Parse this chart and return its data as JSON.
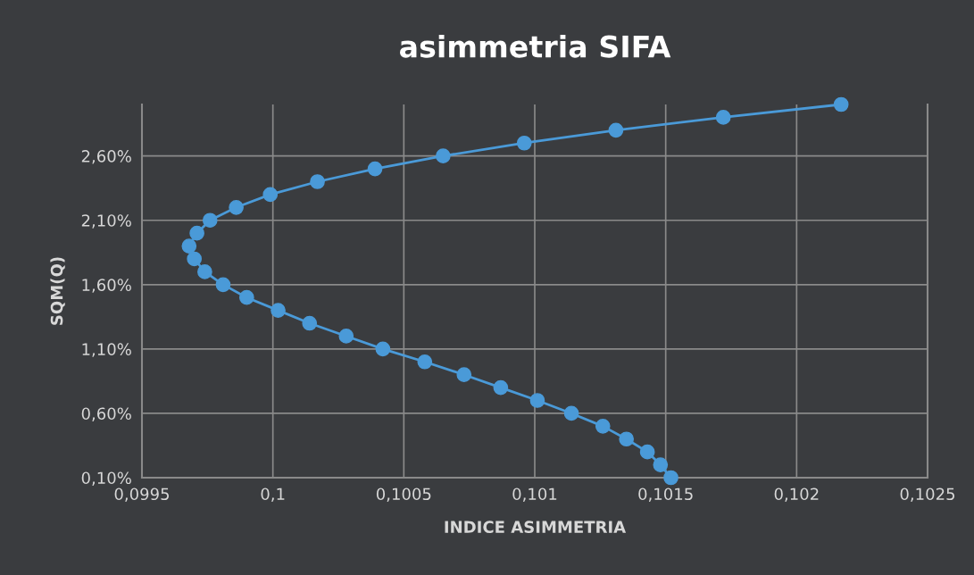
{
  "chart_data": {
    "type": "line",
    "title": "asimmetria SIFA",
    "xlabel": "INDICE ASIMMETRIA",
    "ylabel": "SQM(Q)",
    "x": [
      0.10152,
      0.10148,
      0.10143,
      0.10135,
      0.10126,
      0.10114,
      0.10101,
      0.10087,
      0.10073,
      0.10058,
      0.10042,
      0.10028,
      0.10014,
      0.10002,
      0.0999,
      0.09981,
      0.09974,
      0.0997,
      0.09968,
      0.09971,
      0.09976,
      0.09986,
      0.09999,
      0.10017,
      0.10039,
      0.10065,
      0.10096,
      0.10131,
      0.10172,
      0.10217
    ],
    "series": [
      {
        "color": "#4a9ad8",
        "values": [
          0.1,
          0.2,
          0.3,
          0.4,
          0.5,
          0.6,
          0.7,
          0.8,
          0.9,
          1.0,
          1.1,
          1.2,
          1.3,
          1.4,
          1.5,
          1.6,
          1.7,
          1.8,
          1.9,
          2.0,
          2.1,
          2.2,
          2.3,
          2.4,
          2.5,
          2.6,
          2.7,
          2.8,
          2.9,
          3.0
        ]
      }
    ],
    "xlim": [
      0.0995,
      0.1025
    ],
    "xticks": [
      {
        "value": 0.0995,
        "label": "0,0995"
      },
      {
        "value": 0.1,
        "label": "0,1"
      },
      {
        "value": 0.1005,
        "label": "0,1005"
      },
      {
        "value": 0.101,
        "label": "0,101"
      },
      {
        "value": 0.1015,
        "label": "0,1015"
      },
      {
        "value": 0.102,
        "label": "0,102"
      },
      {
        "value": 0.1025,
        "label": "0,1025"
      }
    ],
    "ylim": [
      0.1,
      3.0
    ],
    "yticks": [
      {
        "value": 0.1,
        "label": "0,10%"
      },
      {
        "value": 0.6,
        "label": "0,60%"
      },
      {
        "value": 1.1,
        "label": "1,10%"
      },
      {
        "value": 1.6,
        "label": "1,60%"
      },
      {
        "value": 2.1,
        "label": "2,10%"
      },
      {
        "value": 2.6,
        "label": "2,60%"
      }
    ],
    "grid": true,
    "marker": "circle",
    "line_style": "solid",
    "legend": false
  }
}
